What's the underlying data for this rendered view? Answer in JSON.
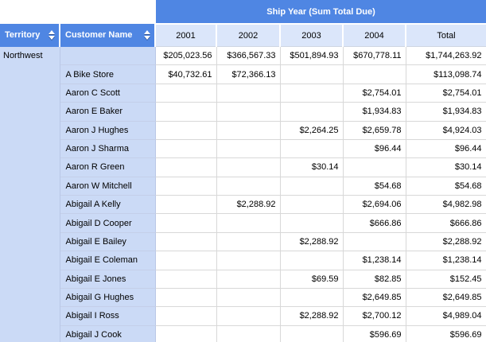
{
  "banner": {
    "title": "Ship Year (Sum Total Due)"
  },
  "headers": {
    "territory": "Territory",
    "customer": "Customer Name"
  },
  "columns": [
    "2001",
    "2002",
    "2003",
    "2004",
    "Total"
  ],
  "territory": "Northwest",
  "icons": {
    "sort": "up-down-triangles"
  },
  "colors": {
    "header_blue": "#4f86e3",
    "year_row_bg": "#dbe6fa",
    "row_header_bg": "#cbdaf6",
    "cell_bg": "#ffffff",
    "header_text": "#ffffff",
    "cell_text": "#000000"
  },
  "rows": [
    {
      "customer": "",
      "values": [
        "$205,023.56",
        "$366,567.33",
        "$501,894.93",
        "$670,778.11",
        "$1,744,263.92"
      ]
    },
    {
      "customer": "A Bike Store",
      "values": [
        "$40,732.61",
        "$72,366.13",
        "",
        "",
        "$113,098.74"
      ]
    },
    {
      "customer": "Aaron C Scott",
      "values": [
        "",
        "",
        "",
        "$2,754.01",
        "$2,754.01"
      ]
    },
    {
      "customer": "Aaron E Baker",
      "values": [
        "",
        "",
        "",
        "$1,934.83",
        "$1,934.83"
      ]
    },
    {
      "customer": "Aaron J Hughes",
      "values": [
        "",
        "",
        "$2,264.25",
        "$2,659.78",
        "$4,924.03"
      ]
    },
    {
      "customer": "Aaron J Sharma",
      "values": [
        "",
        "",
        "",
        "$96.44",
        "$96.44"
      ]
    },
    {
      "customer": "Aaron R Green",
      "values": [
        "",
        "",
        "$30.14",
        "",
        "$30.14"
      ]
    },
    {
      "customer": "Aaron W Mitchell",
      "values": [
        "",
        "",
        "",
        "$54.68",
        "$54.68"
      ]
    },
    {
      "customer": "Abigail A Kelly",
      "values": [
        "",
        "$2,288.92",
        "",
        "$2,694.06",
        "$4,982.98"
      ]
    },
    {
      "customer": "Abigail D Cooper",
      "values": [
        "",
        "",
        "",
        "$666.86",
        "$666.86"
      ]
    },
    {
      "customer": "Abigail E Bailey",
      "values": [
        "",
        "",
        "$2,288.92",
        "",
        "$2,288.92"
      ]
    },
    {
      "customer": "Abigail E Coleman",
      "values": [
        "",
        "",
        "",
        "$1,238.14",
        "$1,238.14"
      ]
    },
    {
      "customer": "Abigail E Jones",
      "values": [
        "",
        "",
        "$69.59",
        "$82.85",
        "$152.45"
      ]
    },
    {
      "customer": "Abigail G Hughes",
      "values": [
        "",
        "",
        "",
        "$2,649.85",
        "$2,649.85"
      ]
    },
    {
      "customer": "Abigail I Ross",
      "values": [
        "",
        "",
        "$2,288.92",
        "$2,700.12",
        "$4,989.04"
      ]
    },
    {
      "customer": "Abigail J Cook",
      "values": [
        "",
        "",
        "",
        "$596.69",
        "$596.69"
      ]
    }
  ]
}
